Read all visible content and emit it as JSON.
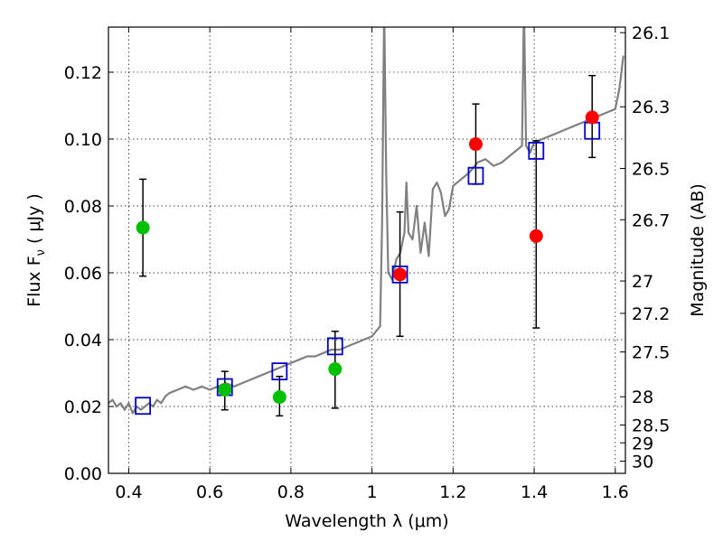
{
  "chart_data": {
    "type": "scatter",
    "xlabel": "Wavelength  λ (μm)",
    "ylabel": "Flux  F",
    "ylabel_subscript": "ν",
    "ylabel_unit": "  ( μJy )",
    "ylabel_right": "Magnitude (AB)",
    "xlim": [
      0.35,
      1.625
    ],
    "ylim": [
      0.0,
      0.1335
    ],
    "x_ticks": [
      0.4,
      0.6,
      0.8,
      1.0,
      1.2,
      1.4,
      1.6
    ],
    "x_tick_labels": [
      "0.4",
      "0.6",
      "0.8",
      "1",
      "1.2",
      "1.4",
      "1.6"
    ],
    "y_ticks": [
      0.0,
      0.02,
      0.04,
      0.06,
      0.08,
      0.1,
      0.12
    ],
    "y_tick_labels": [
      "0.00",
      "0.02",
      "0.04",
      "0.06",
      "0.08",
      "0.10",
      "0.12"
    ],
    "right_ticks": [
      {
        "mag": 26.1,
        "label": "26.1"
      },
      {
        "mag": 26.3,
        "label": "26.3"
      },
      {
        "mag": 26.5,
        "label": "26.5"
      },
      {
        "mag": 26.7,
        "label": "26.7"
      },
      {
        "mag": 27.0,
        "label": "27"
      },
      {
        "mag": 27.2,
        "label": "27.2"
      },
      {
        "mag": 27.5,
        "label": "27.5"
      },
      {
        "mag": 28.0,
        "label": "28"
      },
      {
        "mag": 28.5,
        "label": "28.5"
      },
      {
        "mag": 29.0,
        "label": "29"
      },
      {
        "mag": 30.0,
        "label": "30"
      }
    ],
    "grid": true,
    "colors": {
      "green": "#00c000",
      "red": "#ff0000",
      "blue": "#0000cc",
      "model": "#808080",
      "errorbar": "#000000"
    },
    "series": [
      {
        "style": "green-circle",
        "points": [
          {
            "x": 0.435,
            "y": 0.0735,
            "yerr_low": 0.059,
            "yerr_high": 0.088
          },
          {
            "x": 0.637,
            "y": 0.025,
            "yerr_low": 0.019,
            "yerr_high": 0.0305
          },
          {
            "x": 0.772,
            "y": 0.0228,
            "yerr_low": 0.0172,
            "yerr_high": 0.029
          },
          {
            "x": 0.909,
            "y": 0.0312,
            "yerr_low": 0.0195,
            "yerr_high": 0.0425
          }
        ]
      },
      {
        "style": "red-circle",
        "points": [
          {
            "x": 1.069,
            "y": 0.0595,
            "yerr_low": 0.041,
            "yerr_high": 0.0782
          },
          {
            "x": 1.256,
            "y": 0.0985,
            "yerr_low": 0.0865,
            "yerr_high": 0.1105
          },
          {
            "x": 1.405,
            "y": 0.071,
            "yerr_low": 0.0435,
            "yerr_high": 0.0995
          },
          {
            "x": 1.543,
            "y": 0.1065,
            "yerr_low": 0.0945,
            "yerr_high": 0.119
          }
        ]
      },
      {
        "style": "blue-square",
        "points": [
          {
            "x": 0.435,
            "y": 0.0202
          },
          {
            "x": 0.637,
            "y": 0.0258
          },
          {
            "x": 0.772,
            "y": 0.0305
          },
          {
            "x": 0.909,
            "y": 0.038
          },
          {
            "x": 1.069,
            "y": 0.0595
          },
          {
            "x": 1.256,
            "y": 0.089
          },
          {
            "x": 1.405,
            "y": 0.0965
          },
          {
            "x": 1.543,
            "y": 0.1025
          }
        ]
      },
      {
        "style": "model-line",
        "x": [
          0.35,
          0.36,
          0.37,
          0.38,
          0.39,
          0.4,
          0.41,
          0.42,
          0.43,
          0.44,
          0.45,
          0.46,
          0.47,
          0.48,
          0.49,
          0.5,
          0.52,
          0.54,
          0.56,
          0.58,
          0.6,
          0.62,
          0.64,
          0.66,
          0.68,
          0.7,
          0.72,
          0.74,
          0.76,
          0.78,
          0.8,
          0.82,
          0.84,
          0.86,
          0.88,
          0.9,
          0.92,
          0.94,
          0.96,
          0.98,
          1.0,
          1.02,
          1.025,
          1.03,
          1.035,
          1.04,
          1.05,
          1.06,
          1.07,
          1.08,
          1.085,
          1.09,
          1.1,
          1.11,
          1.12,
          1.13,
          1.14,
          1.15,
          1.16,
          1.17,
          1.18,
          1.19,
          1.2,
          1.22,
          1.24,
          1.26,
          1.28,
          1.3,
          1.32,
          1.34,
          1.36,
          1.37,
          1.375,
          1.38,
          1.39,
          1.4,
          1.42,
          1.44,
          1.46,
          1.48,
          1.5,
          1.52,
          1.54,
          1.56,
          1.58,
          1.6,
          1.61,
          1.62
        ],
        "y": [
          0.021,
          0.022,
          0.02,
          0.021,
          0.019,
          0.021,
          0.018,
          0.02,
          0.019,
          0.02,
          0.021,
          0.02,
          0.022,
          0.021,
          0.023,
          0.024,
          0.025,
          0.026,
          0.025,
          0.026,
          0.025,
          0.026,
          0.027,
          0.026,
          0.027,
          0.028,
          0.029,
          0.03,
          0.031,
          0.032,
          0.033,
          0.034,
          0.035,
          0.035,
          0.036,
          0.037,
          0.037,
          0.038,
          0.039,
          0.04,
          0.041,
          0.044,
          0.075,
          0.14,
          0.09,
          0.06,
          0.058,
          0.064,
          0.066,
          0.072,
          0.087,
          0.072,
          0.07,
          0.08,
          0.066,
          0.075,
          0.065,
          0.085,
          0.087,
          0.084,
          0.077,
          0.079,
          0.086,
          0.088,
          0.09,
          0.093,
          0.094,
          0.092,
          0.093,
          0.095,
          0.097,
          0.098,
          0.14,
          0.098,
          0.096,
          0.099,
          0.1,
          0.101,
          0.102,
          0.103,
          0.104,
          0.105,
          0.106,
          0.107,
          0.108,
          0.109,
          0.115,
          0.125
        ]
      }
    ]
  }
}
